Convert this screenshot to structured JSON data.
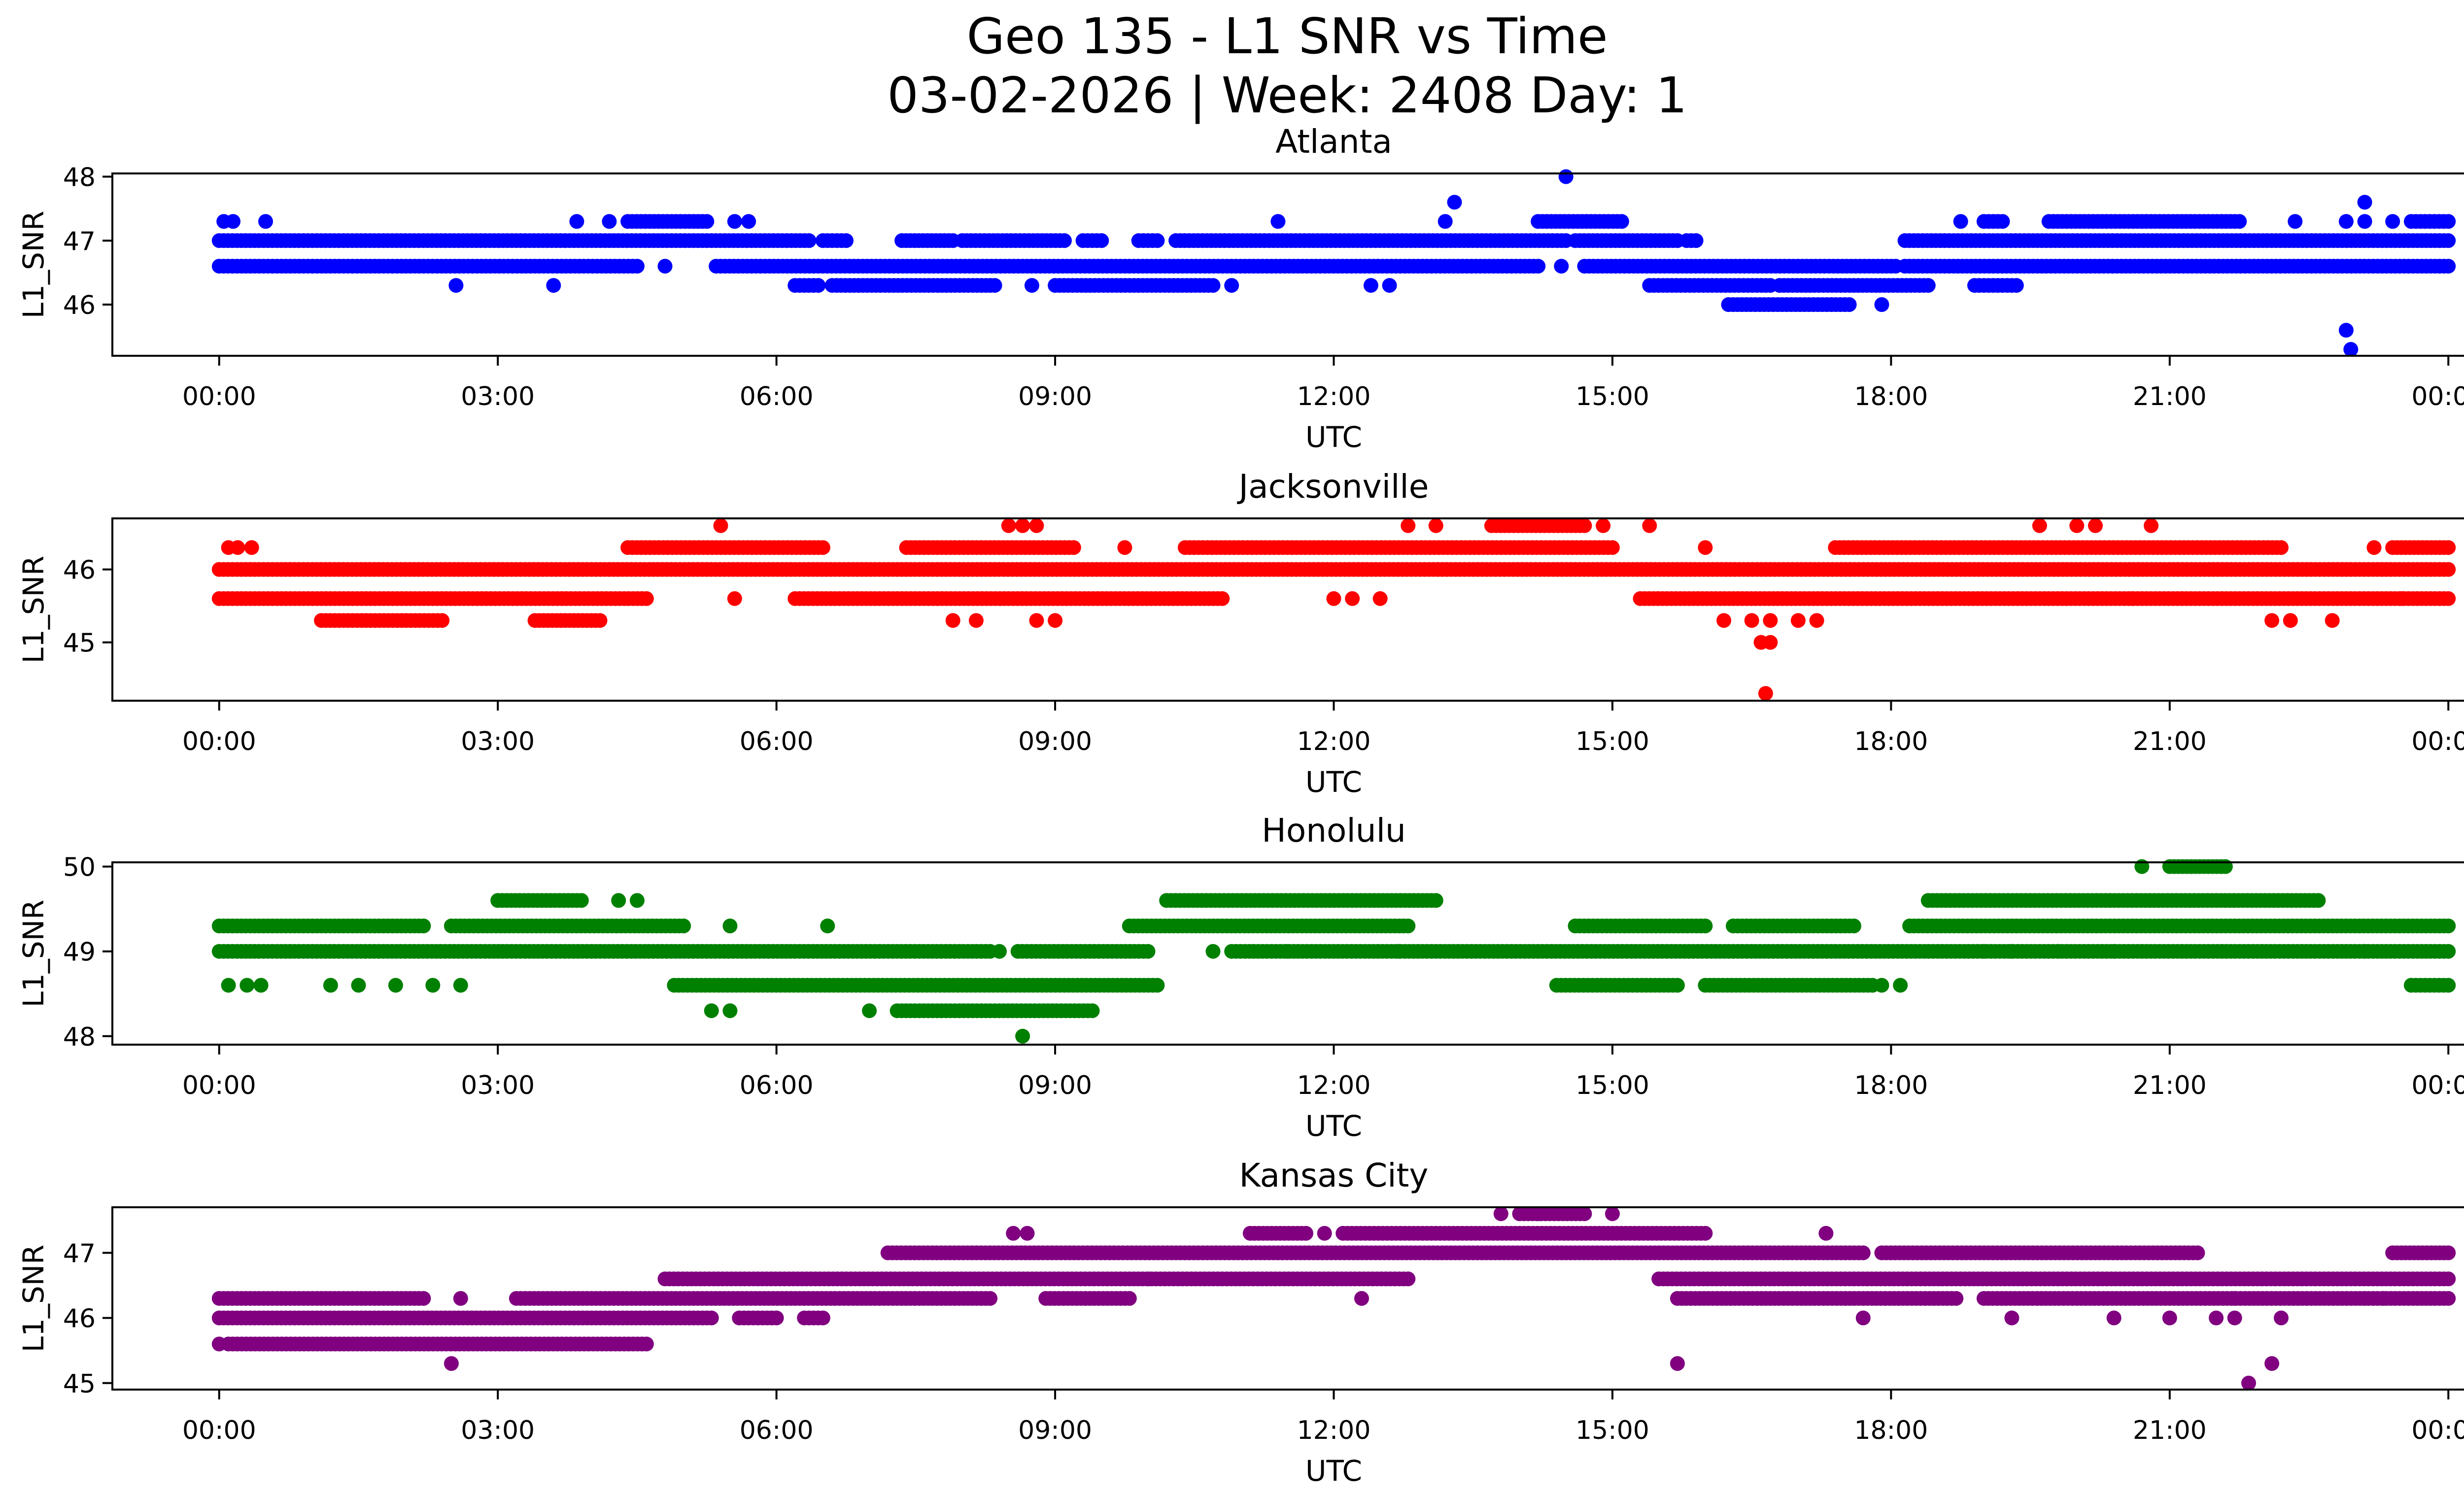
{
  "figure": {
    "title_line1": "Geo 135 - L1 SNR vs Time",
    "title_line2": "03-02-2026 | Week: 2408 Day: 1"
  },
  "chart_data": [
    {
      "type": "scatter",
      "title": "Atlanta",
      "xlabel": "UTC",
      "ylabel": "L1_SNR",
      "color": "#0000ff",
      "xlim_hours": [
        -1.15,
        25.15
      ],
      "ylim": [
        45.2,
        48.05
      ],
      "yticks": [
        46,
        47,
        48
      ],
      "xtick_labels": [
        "00:00",
        "03:00",
        "06:00",
        "09:00",
        "12:00",
        "15:00",
        "18:00",
        "21:00",
        "00:00"
      ],
      "bands": [
        {
          "y": 47.0,
          "segments": [
            [
              0.0,
              6.35
            ],
            [
              6.5,
              6.75
            ],
            [
              7.35,
              7.9
            ],
            [
              8.0,
              9.1
            ],
            [
              9.3,
              9.5
            ],
            [
              9.9,
              10.1
            ],
            [
              10.3,
              14.5
            ],
            [
              14.6,
              15.7
            ],
            [
              15.8,
              15.9
            ],
            [
              18.15,
              24.0
            ]
          ]
        },
        {
          "y": 46.6,
          "segments": [
            [
              0.0,
              4.5
            ],
            [
              5.35,
              14.2
            ],
            [
              14.7,
              18.05
            ],
            [
              18.15,
              24.0
            ]
          ]
        },
        {
          "y": 46.3,
          "segments": [
            [
              6.2,
              6.45
            ],
            [
              6.6,
              8.35
            ],
            [
              9.0,
              10.7
            ],
            [
              15.4,
              16.7
            ],
            [
              16.8,
              18.4
            ],
            [
              18.9,
              19.35
            ]
          ]
        },
        {
          "y": 47.3,
          "segments": [
            [
              4.4,
              5.25
            ],
            [
              14.2,
              15.1
            ],
            [
              19.0,
              19.2
            ],
            [
              19.7,
              21.75
            ],
            [
              23.6,
              24.0
            ]
          ]
        },
        {
          "y": 46.0,
          "segments": [
            [
              16.25,
              17.55
            ]
          ]
        }
      ],
      "points": [
        {
          "x": 0.05,
          "y": 47.3
        },
        {
          "x": 0.15,
          "y": 47.3
        },
        {
          "x": 0.5,
          "y": 47.3
        },
        {
          "x": 3.85,
          "y": 47.3
        },
        {
          "x": 4.2,
          "y": 47.3
        },
        {
          "x": 5.55,
          "y": 47.3
        },
        {
          "x": 5.7,
          "y": 47.3
        },
        {
          "x": 11.4,
          "y": 47.3
        },
        {
          "x": 13.2,
          "y": 47.3
        },
        {
          "x": 13.3,
          "y": 47.6
        },
        {
          "x": 14.5,
          "y": 48.0
        },
        {
          "x": 14.45,
          "y": 46.6
        },
        {
          "x": 18.75,
          "y": 47.3
        },
        {
          "x": 22.35,
          "y": 47.3
        },
        {
          "x": 23.1,
          "y": 47.6
        },
        {
          "x": 23.4,
          "y": 47.3
        },
        {
          "x": 2.55,
          "y": 46.3
        },
        {
          "x": 3.6,
          "y": 46.3
        },
        {
          "x": 4.8,
          "y": 46.6
        },
        {
          "x": 8.75,
          "y": 46.3
        },
        {
          "x": 12.4,
          "y": 46.3
        },
        {
          "x": 12.6,
          "y": 46.3
        },
        {
          "x": 10.9,
          "y": 46.3
        },
        {
          "x": 17.9,
          "y": 46.0
        },
        {
          "x": 22.9,
          "y": 45.6
        },
        {
          "x": 22.95,
          "y": 45.3
        },
        {
          "x": 22.9,
          "y": 47.3
        },
        {
          "x": 23.1,
          "y": 47.3
        }
      ]
    },
    {
      "type": "scatter",
      "title": "Jacksonville",
      "xlabel": "UTC",
      "ylabel": "L1_SNR",
      "color": "#ff0000",
      "xlim_hours": [
        -1.15,
        25.15
      ],
      "ylim": [
        44.2,
        46.7
      ],
      "yticks": [
        45,
        46
      ],
      "xtick_labels": [
        "00:00",
        "03:00",
        "06:00",
        "09:00",
        "12:00",
        "15:00",
        "18:00",
        "21:00",
        "00:00"
      ],
      "bands": [
        {
          "y": 46.0,
          "segments": [
            [
              0.0,
              24.0
            ]
          ]
        },
        {
          "y": 45.6,
          "segments": [
            [
              0.0,
              4.6
            ],
            [
              6.2,
              10.8
            ],
            [
              15.3,
              24.0
            ]
          ]
        },
        {
          "y": 46.3,
          "segments": [
            [
              4.4,
              6.5
            ],
            [
              7.4,
              9.2
            ],
            [
              10.4,
              15.0
            ],
            [
              17.4,
              22.2
            ],
            [
              23.4,
              24.0
            ]
          ]
        },
        {
          "y": 45.3,
          "segments": [
            [
              1.1,
              2.4
            ],
            [
              3.4,
              4.1
            ]
          ]
        },
        {
          "y": 46.6,
          "segments": [
            [
              13.7,
              14.7
            ]
          ]
        }
      ],
      "points": [
        {
          "x": 0.1,
          "y": 46.3
        },
        {
          "x": 0.2,
          "y": 46.3
        },
        {
          "x": 0.35,
          "y": 46.3
        },
        {
          "x": 5.4,
          "y": 46.6
        },
        {
          "x": 5.55,
          "y": 45.6
        },
        {
          "x": 8.5,
          "y": 46.6
        },
        {
          "x": 8.65,
          "y": 46.6
        },
        {
          "x": 8.8,
          "y": 46.6
        },
        {
          "x": 9.75,
          "y": 46.3
        },
        {
          "x": 7.9,
          "y": 45.3
        },
        {
          "x": 8.15,
          "y": 45.3
        },
        {
          "x": 8.8,
          "y": 45.3
        },
        {
          "x": 9.0,
          "y": 45.3
        },
        {
          "x": 12.0,
          "y": 45.6
        },
        {
          "x": 12.2,
          "y": 45.6
        },
        {
          "x": 12.5,
          "y": 45.6
        },
        {
          "x": 12.8,
          "y": 46.6
        },
        {
          "x": 13.1,
          "y": 46.6
        },
        {
          "x": 14.9,
          "y": 46.6
        },
        {
          "x": 15.4,
          "y": 46.6
        },
        {
          "x": 16.0,
          "y": 46.3
        },
        {
          "x": 16.2,
          "y": 45.3
        },
        {
          "x": 16.5,
          "y": 45.3
        },
        {
          "x": 16.6,
          "y": 45.0
        },
        {
          "x": 16.7,
          "y": 45.0
        },
        {
          "x": 16.65,
          "y": 44.3
        },
        {
          "x": 17.0,
          "y": 45.3
        },
        {
          "x": 17.2,
          "y": 45.3
        },
        {
          "x": 16.7,
          "y": 45.3
        },
        {
          "x": 19.6,
          "y": 46.6
        },
        {
          "x": 20.0,
          "y": 46.6
        },
        {
          "x": 20.2,
          "y": 46.6
        },
        {
          "x": 20.8,
          "y": 46.6
        },
        {
          "x": 22.1,
          "y": 45.3
        },
        {
          "x": 22.3,
          "y": 45.3
        },
        {
          "x": 22.75,
          "y": 45.3
        },
        {
          "x": 23.2,
          "y": 46.3
        },
        {
          "x": 20.6,
          "y": 45.6
        },
        {
          "x": 23.5,
          "y": 45.6
        }
      ]
    },
    {
      "type": "scatter",
      "title": "Honolulu",
      "xlabel": "UTC",
      "ylabel": "L1_SNR",
      "color": "#008000",
      "xlim_hours": [
        -1.15,
        25.15
      ],
      "ylim": [
        47.9,
        50.05
      ],
      "yticks": [
        48,
        49,
        50
      ],
      "xtick_labels": [
        "00:00",
        "03:00",
        "06:00",
        "09:00",
        "12:00",
        "15:00",
        "18:00",
        "21:00",
        "00:00"
      ],
      "bands": [
        {
          "y": 49.0,
          "segments": [
            [
              0.0,
              8.3
            ],
            [
              8.6,
              10.0
            ],
            [
              10.9,
              24.0
            ]
          ]
        },
        {
          "y": 49.3,
          "segments": [
            [
              0.0,
              2.2
            ],
            [
              2.5,
              5.0
            ],
            [
              9.8,
              12.8
            ],
            [
              14.6,
              16.0
            ],
            [
              16.3,
              17.6
            ],
            [
              18.2,
              24.0
            ]
          ]
        },
        {
          "y": 48.6,
          "segments": [
            [
              4.9,
              10.1
            ],
            [
              14.4,
              15.7
            ],
            [
              16.0,
              17.8
            ],
            [
              23.6,
              24.0
            ]
          ]
        },
        {
          "y": 48.3,
          "segments": [
            [
              7.3,
              9.4
            ]
          ]
        },
        {
          "y": 49.6,
          "segments": [
            [
              3.0,
              3.9
            ],
            [
              10.2,
              13.1
            ],
            [
              18.4,
              22.6
            ]
          ]
        },
        {
          "y": 50.0,
          "segments": [
            [
              21.0,
              21.6
            ]
          ]
        }
      ],
      "points": [
        {
          "x": 0.1,
          "y": 48.6
        },
        {
          "x": 0.3,
          "y": 48.6
        },
        {
          "x": 0.45,
          "y": 48.6
        },
        {
          "x": 1.2,
          "y": 48.6
        },
        {
          "x": 1.5,
          "y": 48.6
        },
        {
          "x": 1.9,
          "y": 48.6
        },
        {
          "x": 2.3,
          "y": 48.6
        },
        {
          "x": 2.6,
          "y": 48.6
        },
        {
          "x": 4.3,
          "y": 49.6
        },
        {
          "x": 4.5,
          "y": 49.6
        },
        {
          "x": 5.5,
          "y": 49.3
        },
        {
          "x": 6.55,
          "y": 49.3
        },
        {
          "x": 5.3,
          "y": 48.3
        },
        {
          "x": 5.5,
          "y": 48.3
        },
        {
          "x": 7.0,
          "y": 48.3
        },
        {
          "x": 8.65,
          "y": 48.0
        },
        {
          "x": 8.4,
          "y": 49.0
        },
        {
          "x": 10.7,
          "y": 49.0
        },
        {
          "x": 11.5,
          "y": 49.0
        },
        {
          "x": 12.7,
          "y": 49.0
        },
        {
          "x": 17.9,
          "y": 48.6
        },
        {
          "x": 18.1,
          "y": 48.6
        },
        {
          "x": 19.0,
          "y": 49.0
        },
        {
          "x": 19.3,
          "y": 49.0
        },
        {
          "x": 19.8,
          "y": 49.0
        },
        {
          "x": 20.4,
          "y": 49.0
        },
        {
          "x": 20.7,
          "y": 50.0
        },
        {
          "x": 23.1,
          "y": 49.0
        }
      ]
    },
    {
      "type": "scatter",
      "title": "Kansas City",
      "xlabel": "UTC",
      "ylabel": "L1_SNR",
      "color": "#800080",
      "xlim_hours": [
        -1.15,
        25.15
      ],
      "ylim": [
        44.9,
        47.7
      ],
      "yticks": [
        45,
        46,
        47
      ],
      "xtick_labels": [
        "00:00",
        "03:00",
        "06:00",
        "09:00",
        "12:00",
        "15:00",
        "18:00",
        "21:00",
        "00:00"
      ],
      "bands": [
        {
          "y": 46.0,
          "segments": [
            [
              0.0,
              5.3
            ],
            [
              5.6,
              6.0
            ],
            [
              6.3,
              6.5
            ]
          ]
        },
        {
          "y": 45.6,
          "segments": [
            [
              0.1,
              4.6
            ]
          ]
        },
        {
          "y": 46.3,
          "segments": [
            [
              0.0,
              2.2
            ],
            [
              3.2,
              8.3
            ],
            [
              8.9,
              9.8
            ],
            [
              15.7,
              18.7
            ],
            [
              19.0,
              24.0
            ]
          ]
        },
        {
          "y": 46.6,
          "segments": [
            [
              4.8,
              12.8
            ],
            [
              15.5,
              24.0
            ]
          ]
        },
        {
          "y": 47.0,
          "segments": [
            [
              7.2,
              17.7
            ],
            [
              17.9,
              21.3
            ],
            [
              23.4,
              24.0
            ]
          ]
        },
        {
          "y": 47.3,
          "segments": [
            [
              11.1,
              11.7
            ],
            [
              12.1,
              16.0
            ]
          ]
        },
        {
          "y": 47.6,
          "segments": [
            [
              14.0,
              14.7
            ]
          ]
        }
      ],
      "points": [
        {
          "x": 0.0,
          "y": 45.6
        },
        {
          "x": 2.5,
          "y": 45.3
        },
        {
          "x": 2.6,
          "y": 46.3
        },
        {
          "x": 8.55,
          "y": 47.3
        },
        {
          "x": 8.7,
          "y": 47.3
        },
        {
          "x": 11.9,
          "y": 47.3
        },
        {
          "x": 12.3,
          "y": 46.3
        },
        {
          "x": 13.8,
          "y": 47.6
        },
        {
          "x": 14.2,
          "y": 47.6
        },
        {
          "x": 15.0,
          "y": 47.6
        },
        {
          "x": 15.7,
          "y": 45.3
        },
        {
          "x": 17.3,
          "y": 47.3
        },
        {
          "x": 17.7,
          "y": 46.0
        },
        {
          "x": 19.3,
          "y": 46.0
        },
        {
          "x": 20.4,
          "y": 46.0
        },
        {
          "x": 21.0,
          "y": 46.0
        },
        {
          "x": 21.5,
          "y": 46.0
        },
        {
          "x": 21.7,
          "y": 46.0
        },
        {
          "x": 21.85,
          "y": 45.0
        },
        {
          "x": 22.1,
          "y": 45.3
        },
        {
          "x": 21.7,
          "y": 46.3
        },
        {
          "x": 22.2,
          "y": 46.0
        },
        {
          "x": 23.1,
          "y": 46.3
        },
        {
          "x": 23.3,
          "y": 46.3
        },
        {
          "x": 10.0,
          "y": 46.6
        }
      ]
    }
  ]
}
